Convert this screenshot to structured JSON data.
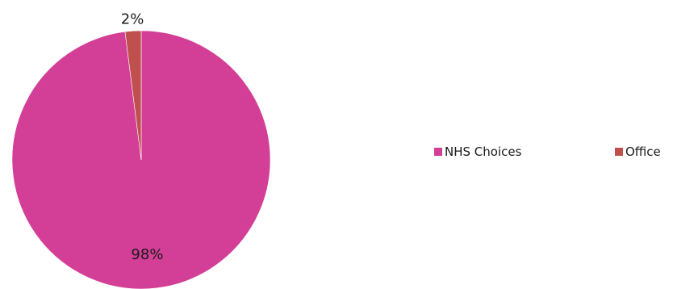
{
  "chart_data": {
    "type": "pie",
    "title": "",
    "slices": [
      {
        "name": "NHS Choices",
        "value": 98,
        "label": "98%",
        "color": "#D33F97"
      },
      {
        "name": "Office",
        "value": 2,
        "label": "2%",
        "color": "#C0504D"
      }
    ],
    "legend": {
      "position": "right",
      "entries": [
        "NHS Choices",
        "Office"
      ]
    },
    "start_angle": "12 o'clock",
    "direction": "counterclockwise"
  }
}
